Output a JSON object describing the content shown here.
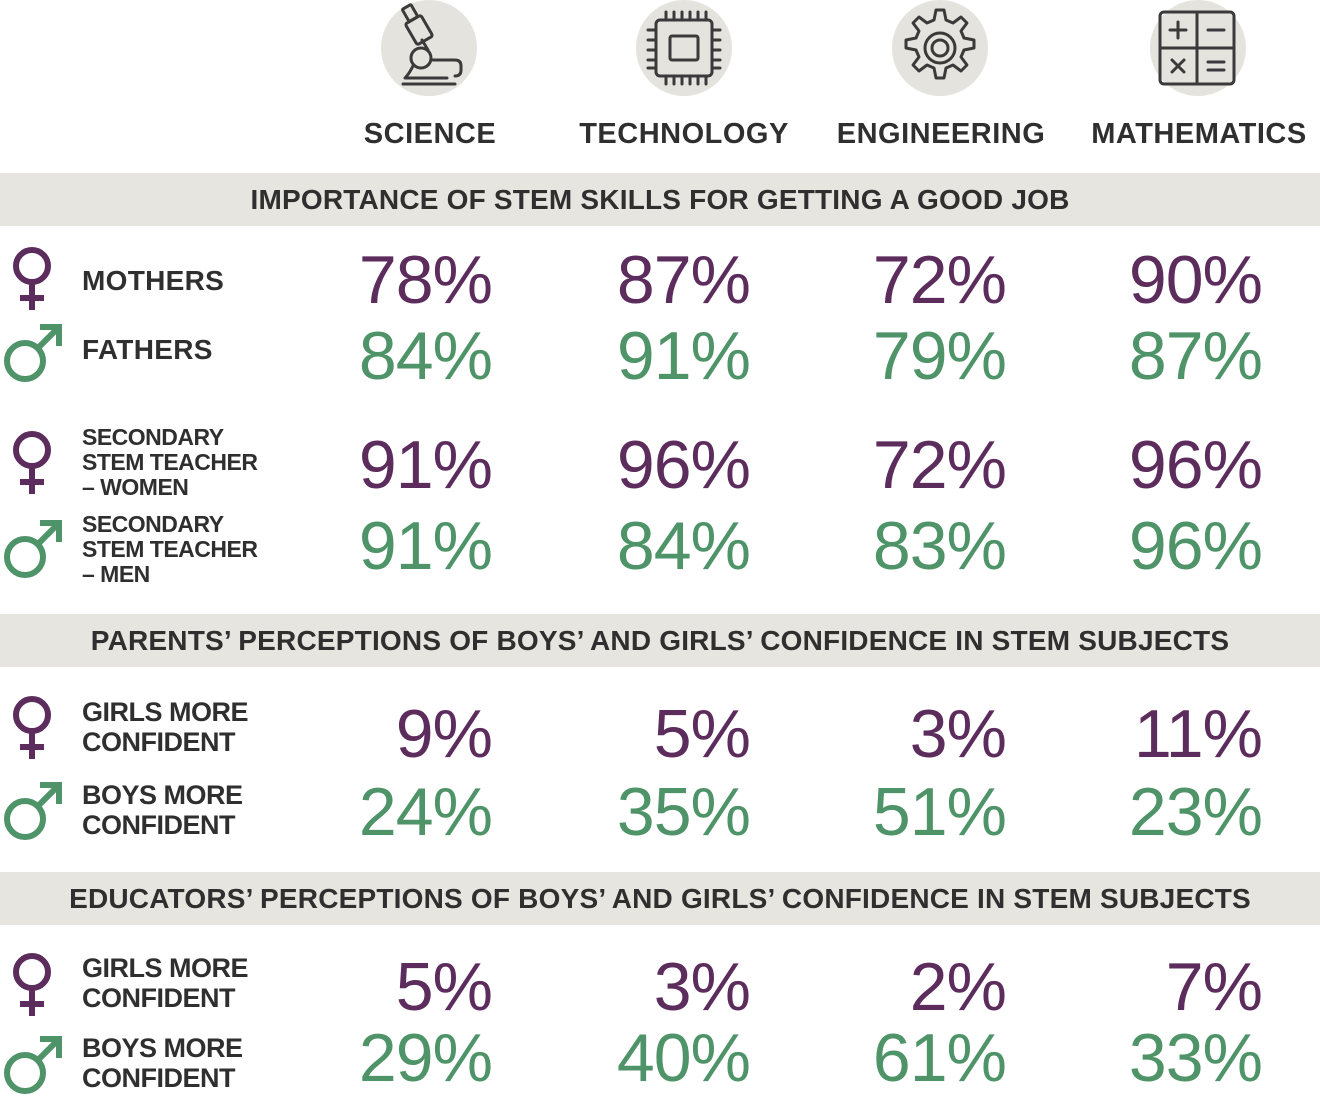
{
  "colors": {
    "women": "#5c2d5c",
    "men": "#4f9369",
    "band": "#e7e5df",
    "icon_bg": "#e5e3dd",
    "text": "#2f2f2f"
  },
  "subjects": [
    {
      "label": "SCIENCE",
      "icon": "microscope-icon"
    },
    {
      "label": "TECHNOLOGY",
      "icon": "microchip-icon"
    },
    {
      "label": "ENGINEERING",
      "icon": "gear-icon"
    },
    {
      "label": "MATHEMATICS",
      "icon": "calculator-icon"
    }
  ],
  "sections": [
    {
      "title": "IMPORTANCE OF STEM SKILLS FOR GETTING A GOOD JOB"
    },
    {
      "title": "PARENTS’ PERCEPTIONS OF BOYS’ AND GIRLS’ CONFIDENCE IN STEM SUBJECTS"
    },
    {
      "title": "EDUCATORS’ PERCEPTIONS OF BOYS’ AND GIRLS’ CONFIDENCE IN STEM SUBJECTS"
    }
  ],
  "rows": [
    {
      "lines": [
        "MOTHERS"
      ],
      "symbol": "female-symbol-icon",
      "values": [
        "78%",
        "87%",
        "72%",
        "90%"
      ]
    },
    {
      "lines": [
        "FATHERS"
      ],
      "symbol": "male-symbol-icon",
      "values": [
        "84%",
        "91%",
        "79%",
        "87%"
      ]
    },
    {
      "lines": [
        "SECONDARY",
        "STEM TEACHER",
        "– WOMEN"
      ],
      "symbol": "female-symbol-icon",
      "values": [
        "91%",
        "96%",
        "72%",
        "96%"
      ]
    },
    {
      "lines": [
        "SECONDARY",
        "STEM TEACHER",
        "– MEN"
      ],
      "symbol": "male-symbol-icon",
      "values": [
        "91%",
        "84%",
        "83%",
        "96%"
      ]
    },
    {
      "lines": [
        "GIRLS MORE",
        "CONFIDENT"
      ],
      "symbol": "female-symbol-icon",
      "values": [
        "9%",
        "5%",
        "3%",
        "11%"
      ]
    },
    {
      "lines": [
        "BOYS MORE",
        "CONFIDENT"
      ],
      "symbol": "male-symbol-icon",
      "values": [
        "24%",
        "35%",
        "51%",
        "23%"
      ]
    },
    {
      "lines": [
        "GIRLS MORE",
        "CONFIDENT"
      ],
      "symbol": "female-symbol-icon",
      "values": [
        "5%",
        "3%",
        "2%",
        "7%"
      ]
    },
    {
      "lines": [
        "BOYS MORE",
        "CONFIDENT"
      ],
      "symbol": "male-symbol-icon",
      "values": [
        "29%",
        "40%",
        "61%",
        "33%"
      ]
    }
  ],
  "chart_data": {
    "type": "table",
    "columns": [
      "SCIENCE",
      "TECHNOLOGY",
      "ENGINEERING",
      "MATHEMATICS"
    ],
    "groups": [
      {
        "title": "IMPORTANCE OF STEM SKILLS FOR GETTING A GOOD JOB",
        "rows": [
          {
            "label": "MOTHERS",
            "values": [
              78,
              87,
              72,
              90
            ]
          },
          {
            "label": "FATHERS",
            "values": [
              84,
              91,
              79,
              87
            ]
          },
          {
            "label": "SECONDARY STEM TEACHER – WOMEN",
            "values": [
              91,
              96,
              72,
              96
            ]
          },
          {
            "label": "SECONDARY STEM TEACHER – MEN",
            "values": [
              91,
              84,
              83,
              96
            ]
          }
        ]
      },
      {
        "title": "PARENTS’ PERCEPTIONS OF BOYS’ AND GIRLS’ CONFIDENCE IN STEM SUBJECTS",
        "rows": [
          {
            "label": "GIRLS MORE CONFIDENT",
            "values": [
              9,
              5,
              3,
              11
            ]
          },
          {
            "label": "BOYS MORE CONFIDENT",
            "values": [
              24,
              35,
              51,
              23
            ]
          }
        ]
      },
      {
        "title": "EDUCATORS’ PERCEPTIONS OF BOYS’ AND GIRLS’ CONFIDENCE IN STEM SUBJECTS",
        "rows": [
          {
            "label": "GIRLS MORE CONFIDENT",
            "values": [
              5,
              3,
              2,
              7
            ]
          },
          {
            "label": "BOYS MORE CONFIDENT",
            "values": [
              29,
              40,
              61,
              33
            ]
          }
        ]
      }
    ]
  }
}
